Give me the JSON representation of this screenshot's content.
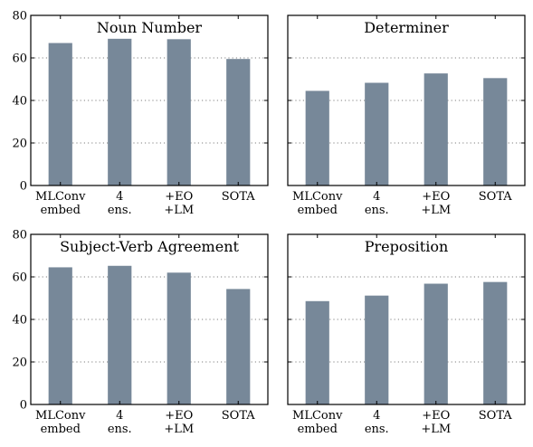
{
  "chart_data": [
    {
      "type": "bar",
      "title": "Noun Number",
      "categories": [
        [
          "MLConv",
          "embed"
        ],
        [
          "4",
          "ens."
        ],
        [
          "+EO",
          "+LM"
        ],
        [
          "SOTA"
        ]
      ],
      "values": [
        67,
        69,
        68.8,
        59.5
      ],
      "ylim": [
        0,
        80
      ],
      "yticks": [
        0,
        20,
        40,
        60,
        80
      ],
      "grid": true,
      "bar_color": "#778899"
    },
    {
      "type": "bar",
      "title": "Determiner",
      "categories": [
        [
          "MLConv",
          "embed"
        ],
        [
          "4",
          "ens."
        ],
        [
          "+EO",
          "+LM"
        ],
        [
          "SOTA"
        ]
      ],
      "values": [
        44.5,
        48.3,
        52.7,
        50.5
      ],
      "ylim": [
        0,
        80
      ],
      "yticks": [
        0,
        20,
        40,
        60,
        80
      ],
      "grid": true,
      "bar_color": "#778899"
    },
    {
      "type": "bar",
      "title": "Subject-Verb Agreement",
      "categories": [
        [
          "MLConv",
          "embed"
        ],
        [
          "4",
          "ens."
        ],
        [
          "+EO",
          "+LM"
        ],
        [
          "SOTA"
        ]
      ],
      "values": [
        64.5,
        65.2,
        62,
        54.3
      ],
      "ylim": [
        0,
        80
      ],
      "yticks": [
        0,
        20,
        40,
        60,
        80
      ],
      "grid": true,
      "bar_color": "#778899"
    },
    {
      "type": "bar",
      "title": "Preposition",
      "categories": [
        [
          "MLConv",
          "embed"
        ],
        [
          "4",
          "ens."
        ],
        [
          "+EO",
          "+LM"
        ],
        [
          "SOTA"
        ]
      ],
      "values": [
        48.6,
        51.2,
        56.8,
        57.6
      ],
      "ylim": [
        0,
        80
      ],
      "yticks": [
        0,
        20,
        40,
        60,
        80
      ],
      "grid": true,
      "bar_color": "#778899"
    }
  ]
}
